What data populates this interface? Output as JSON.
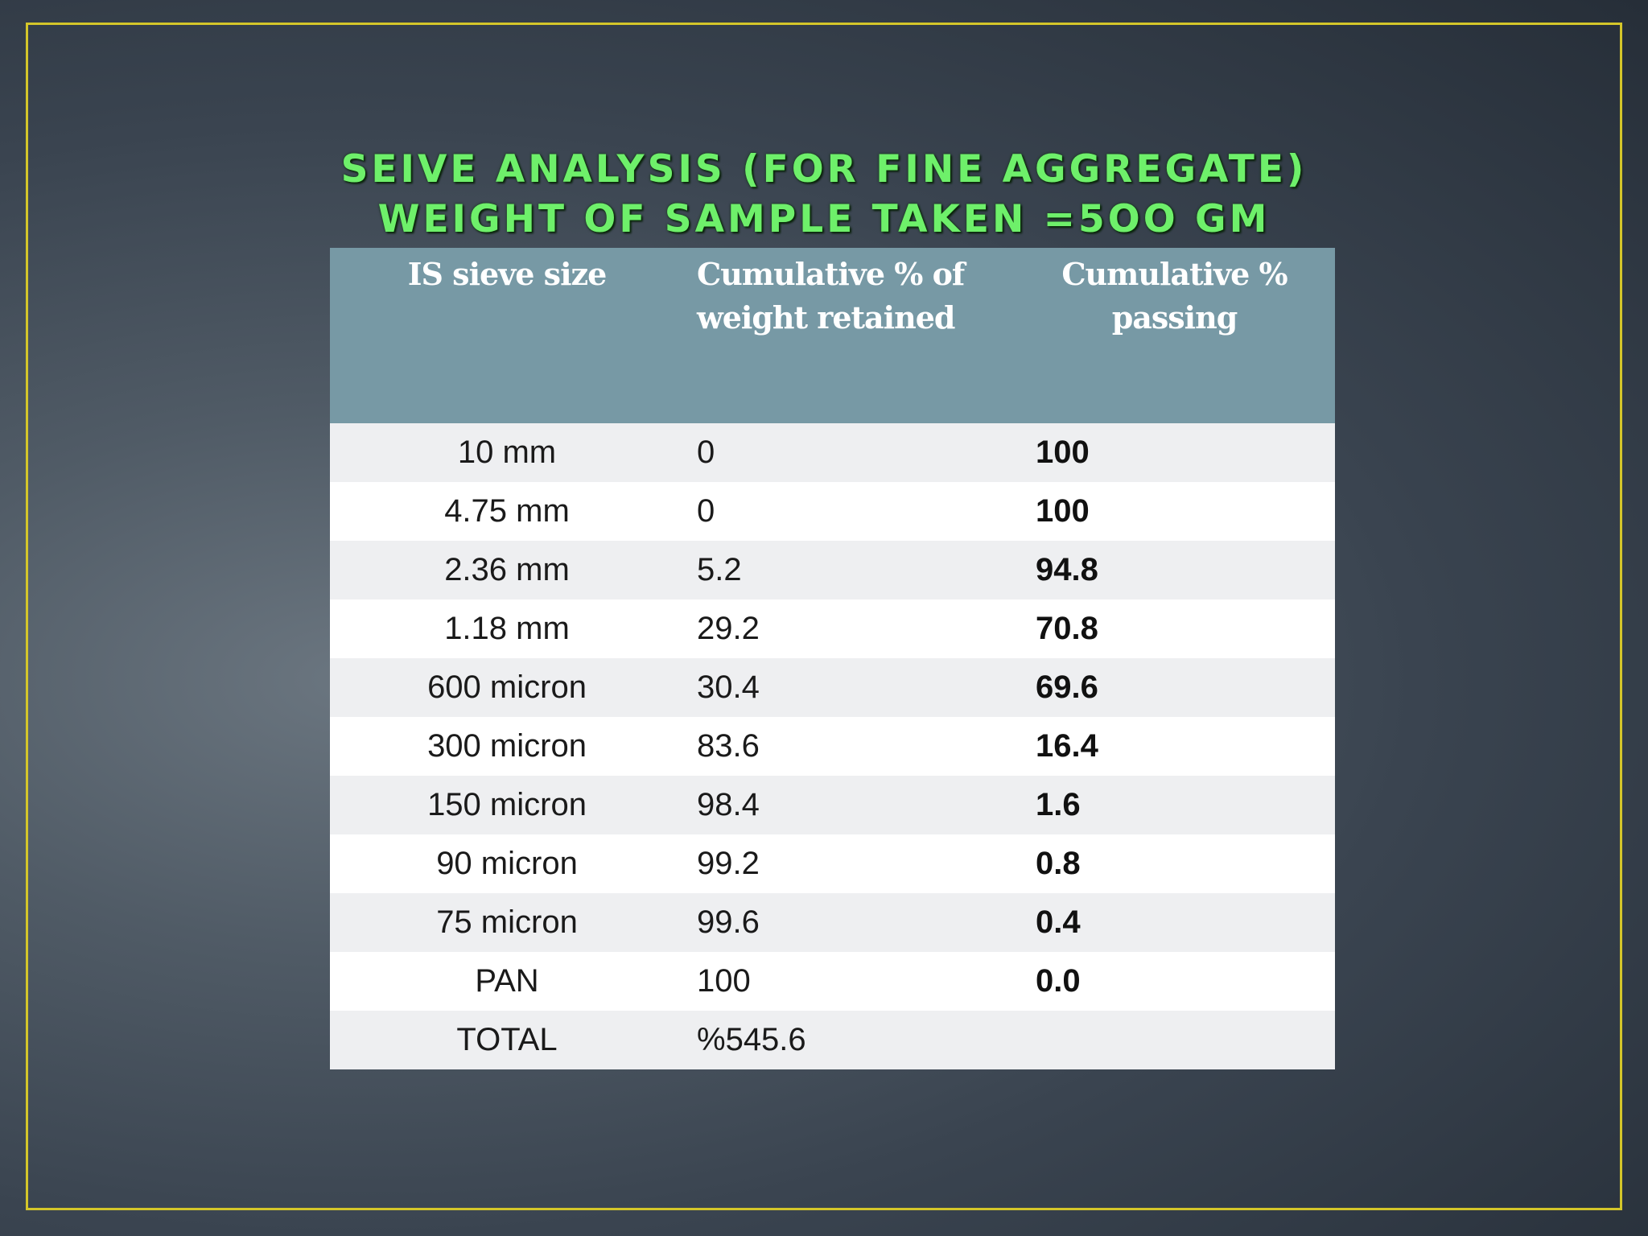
{
  "slide": {
    "title_line1": "SEIVE ANALYSIS (FOR FINE AGGREGATE)",
    "title_line2": "WEIGHT OF SAMPLE TAKEN =5OO GM"
  },
  "table": {
    "headers": {
      "sieve_size": "IS sieve size",
      "retained": "Cumulative % of weight retained",
      "passing": "Cumulative % passing"
    },
    "rows": [
      {
        "size": "10 mm",
        "retained": "0",
        "passing": "100"
      },
      {
        "size": "4.75 mm",
        "retained": "0",
        "passing": "100"
      },
      {
        "size": "2.36 mm",
        "retained": "5.2",
        "passing": "94.8"
      },
      {
        "size": "1.18 mm",
        "retained": "29.2",
        "passing": "70.8"
      },
      {
        "size": "600 micron",
        "retained": "30.4",
        "passing": "69.6"
      },
      {
        "size": "300 micron",
        "retained": "83.6",
        "passing": "16.4"
      },
      {
        "size": "150 micron",
        "retained": "98.4",
        "passing": "1.6"
      },
      {
        "size": "90 micron",
        "retained": "99.2",
        "passing": "0.8"
      },
      {
        "size": "75 micron",
        "retained": "99.6",
        "passing": "0.4"
      },
      {
        "size": "PAN",
        "retained": "100",
        "passing": "0.0"
      },
      {
        "size": "TOTAL",
        "retained": "%545.6",
        "passing": ""
      }
    ]
  },
  "colors": {
    "title": "#6ef06a",
    "frame_border": "#d4c62a",
    "header_bg": "#7799a5",
    "row_alt_bg": "#eeeff1"
  }
}
